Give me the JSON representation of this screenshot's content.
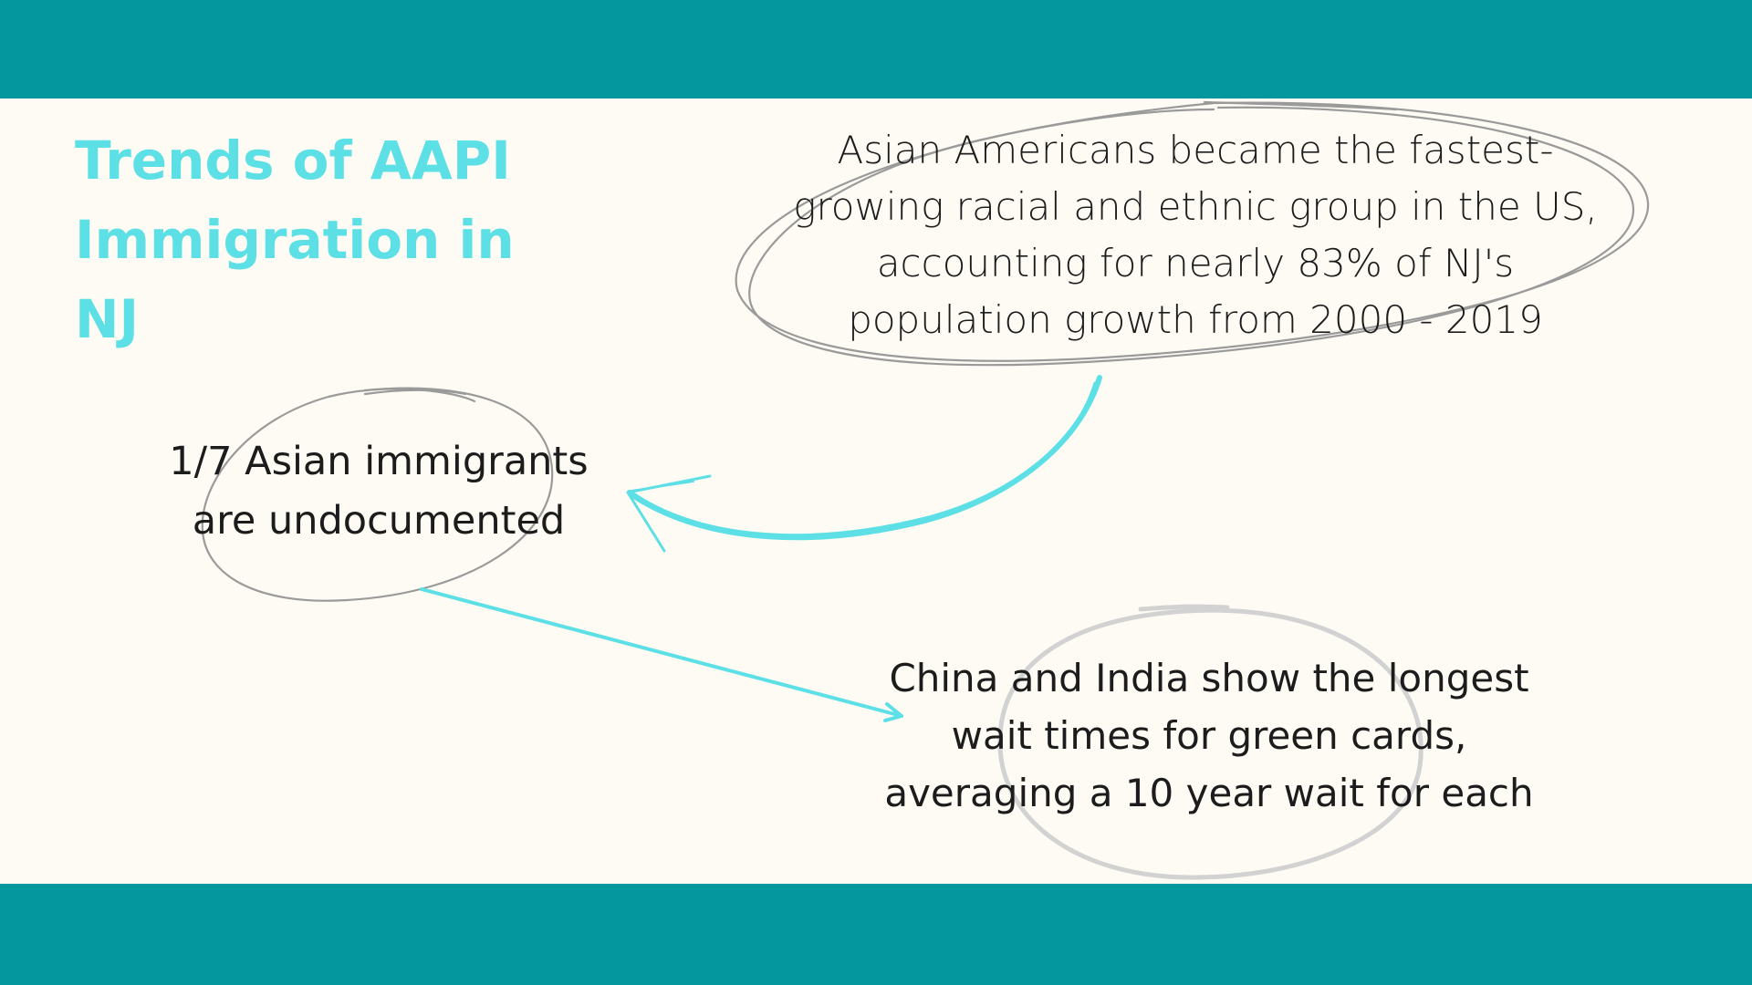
{
  "title": "Trends of AAPI Immigration in NJ",
  "callouts": {
    "growth": "Asian Americans became the fastest-\ngrowing racial and ethnic group in the US,\naccounting for nearly 83% of NJ's\npopulation growth from 2000 - 2019",
    "undocumented": "1/7 Asian immigrants\nare undocumented",
    "green_cards": "China and India show the longest\nwait times for green cards,\naveraging a 10 year wait for each"
  },
  "colors": {
    "band": "#05979e",
    "background": "#fdfbf3",
    "title": "#5ddfe6",
    "arrow": "#5ddfe6",
    "ellipse_dark": "#9a9a9a",
    "ellipse_light": "#d2d2d2",
    "text": "#1c1c1c"
  }
}
